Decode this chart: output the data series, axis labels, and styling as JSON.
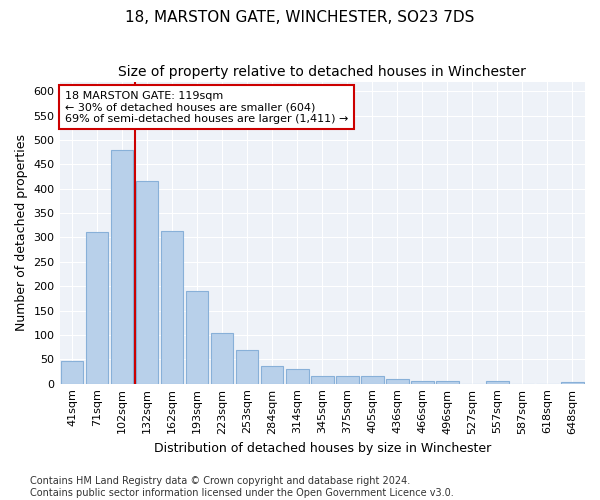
{
  "title": "18, MARSTON GATE, WINCHESTER, SO23 7DS",
  "subtitle": "Size of property relative to detached houses in Winchester",
  "xlabel": "Distribution of detached houses by size in Winchester",
  "ylabel": "Number of detached properties",
  "categories": [
    "41sqm",
    "71sqm",
    "102sqm",
    "132sqm",
    "162sqm",
    "193sqm",
    "223sqm",
    "253sqm",
    "284sqm",
    "314sqm",
    "345sqm",
    "375sqm",
    "405sqm",
    "436sqm",
    "466sqm",
    "496sqm",
    "527sqm",
    "557sqm",
    "587sqm",
    "618sqm",
    "648sqm"
  ],
  "values": [
    46,
    311,
    480,
    415,
    314,
    190,
    104,
    70,
    37,
    31,
    15,
    15,
    15,
    10,
    5,
    5,
    0,
    5,
    0,
    0,
    3
  ],
  "bar_color": "#b8d0ea",
  "bar_edge_color": "#88b0d8",
  "vline_color": "#cc0000",
  "vline_position": 2.5,
  "annotation_text": "18 MARSTON GATE: 119sqm\n← 30% of detached houses are smaller (604)\n69% of semi-detached houses are larger (1,411) →",
  "annotation_box_color": "#ffffff",
  "annotation_box_edge": "#cc0000",
  "ylim": [
    0,
    620
  ],
  "yticks": [
    0,
    50,
    100,
    150,
    200,
    250,
    300,
    350,
    400,
    450,
    500,
    550,
    600
  ],
  "plot_bg_color": "#eef2f8",
  "fig_bg_color": "#ffffff",
  "grid_color": "#ffffff",
  "title_fontsize": 11,
  "subtitle_fontsize": 10,
  "xlabel_fontsize": 9,
  "ylabel_fontsize": 9,
  "tick_fontsize": 8,
  "annot_fontsize": 8,
  "footnote_fontsize": 7,
  "footnote": "Contains HM Land Registry data © Crown copyright and database right 2024.\nContains public sector information licensed under the Open Government Licence v3.0."
}
